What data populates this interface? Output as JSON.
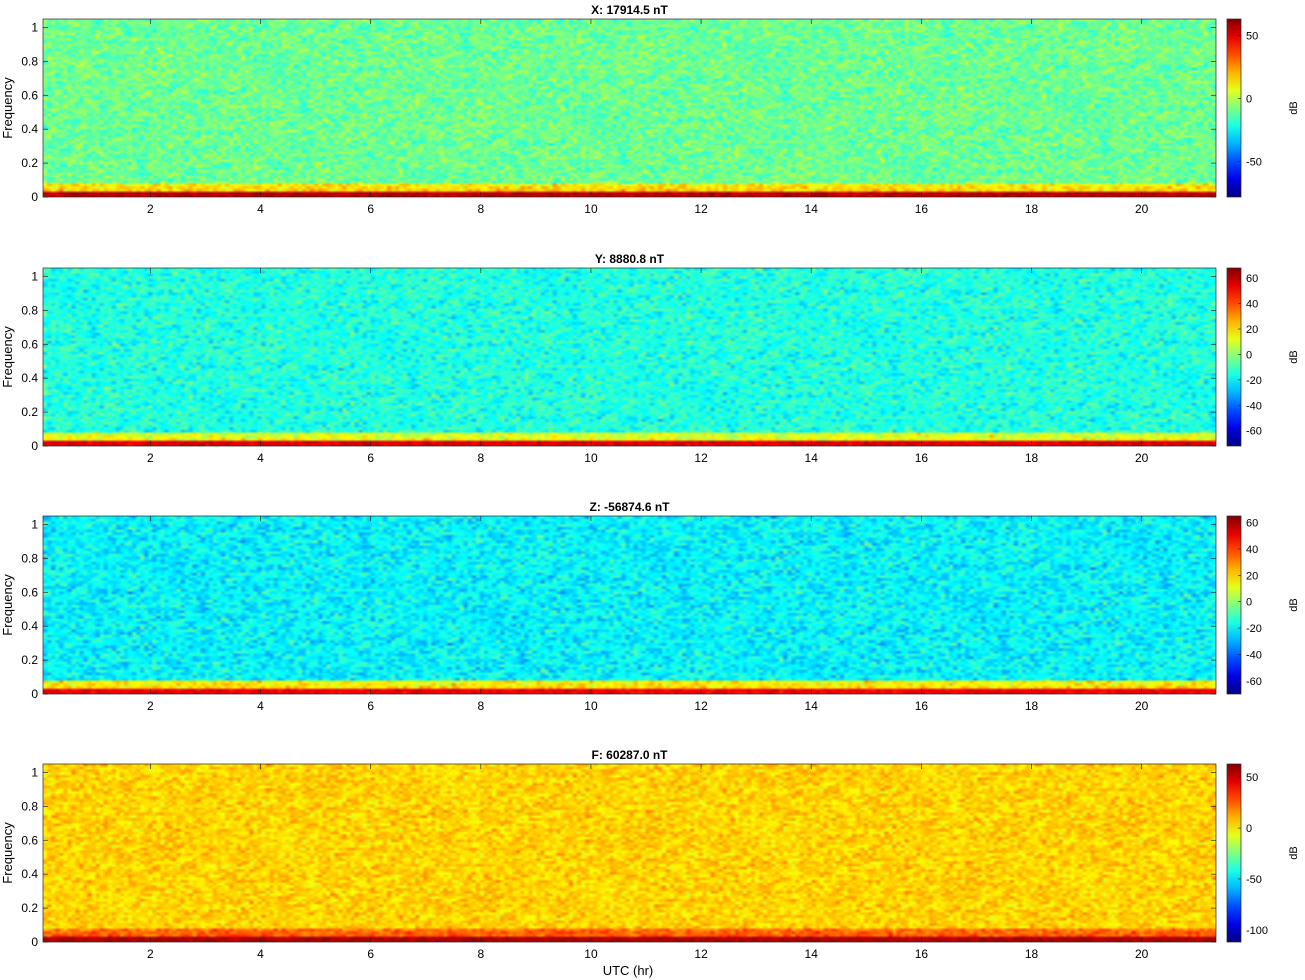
{
  "figure": {
    "xlabel": "UTC (hr)"
  },
  "chart_data": [
    {
      "type": "heatmap",
      "title": "X: 17914.5 nT",
      "ylabel": "Frequency",
      "colorbar_label": "dB",
      "xlim": [
        0.05,
        21.35
      ],
      "ylim": [
        0,
        1.05
      ],
      "xticks": [
        2,
        4,
        6,
        8,
        10,
        12,
        14,
        16,
        18,
        20
      ],
      "yticks": [
        0,
        0.2,
        0.4,
        0.6,
        0.8,
        1
      ],
      "clim": [
        -78,
        63
      ],
      "cticks": [
        -50,
        0,
        50
      ],
      "background_db": -10,
      "low_band_db": 18,
      "floor_db": 55
    },
    {
      "type": "heatmap",
      "title": "Y: 8880.8 nT",
      "ylabel": "Frequency",
      "colorbar_label": "dB",
      "xlim": [
        0.05,
        21.35
      ],
      "ylim": [
        0,
        1.05
      ],
      "xticks": [
        2,
        4,
        6,
        8,
        10,
        12,
        14,
        16,
        18,
        20
      ],
      "yticks": [
        0,
        0.2,
        0.4,
        0.6,
        0.8,
        1
      ],
      "clim": [
        -72,
        68
      ],
      "cticks": [
        -60,
        -40,
        -20,
        0,
        20,
        40,
        60
      ],
      "background_db": -15,
      "low_band_db": 15,
      "floor_db": 55
    },
    {
      "type": "heatmap",
      "title": "Z: -56874.6 nT",
      "ylabel": "Frequency",
      "colorbar_label": "dB",
      "xlim": [
        0.05,
        21.35
      ],
      "ylim": [
        0,
        1.05
      ],
      "xticks": [
        2,
        4,
        6,
        8,
        10,
        12,
        14,
        16,
        18,
        20
      ],
      "yticks": [
        0,
        0.2,
        0.4,
        0.6,
        0.8,
        1
      ],
      "clim": [
        -70,
        65
      ],
      "cticks": [
        -60,
        -40,
        -20,
        0,
        20,
        40,
        60
      ],
      "background_db": -20,
      "low_band_db": 20,
      "floor_db": 50
    },
    {
      "type": "heatmap",
      "title": "F: 60287.0 nT",
      "ylabel": "Frequency",
      "colorbar_label": "dB",
      "xlim": [
        0.05,
        21.35
      ],
      "ylim": [
        0,
        1.05
      ],
      "xticks": [
        2,
        4,
        6,
        8,
        10,
        12,
        14,
        16,
        18,
        20
      ],
      "yticks": [
        0,
        0.2,
        0.4,
        0.6,
        0.8,
        1
      ],
      "clim": [
        -112,
        63
      ],
      "cticks": [
        -100,
        -50,
        0,
        50
      ],
      "background_db": 5,
      "low_band_db": 28,
      "floor_db": 55
    }
  ]
}
